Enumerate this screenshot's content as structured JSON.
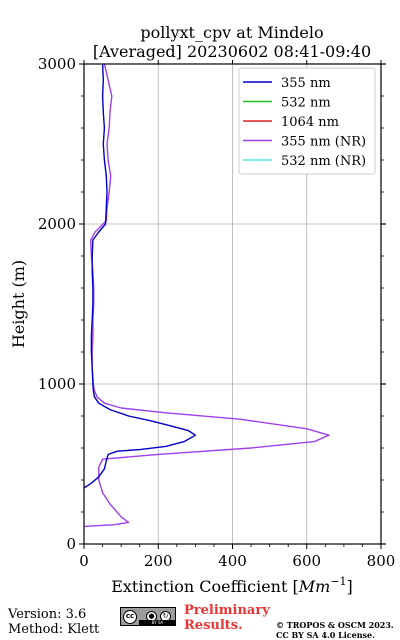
{
  "chart_data": {
    "type": "line",
    "title_line1": "pollyxt_cpv at Mindelo",
    "title_line2": "[Averaged] 20230602 08:41-09:40",
    "xlabel": "Extinction Coefficient [",
    "xlabel_unit": "Mm",
    "xlabel_exp": "−1",
    "xlabel_close": "]",
    "ylabel": "Height (m)",
    "xlim": [
      0,
      800
    ],
    "ylim": [
      0,
      3000
    ],
    "xticks": [
      0,
      200,
      400,
      600,
      800
    ],
    "yticks": [
      0,
      1000,
      2000,
      3000
    ],
    "grid": true,
    "legend_position": "top-right",
    "legend": [
      {
        "name": "355 nm",
        "color": "#0000cc"
      },
      {
        "name": "532 nm",
        "color": "#22bb22"
      },
      {
        "name": "1064 nm",
        "color": "#dd2222"
      },
      {
        "name": "355 nm (NR)",
        "color": "#a040ee"
      },
      {
        "name": "532 nm (NR)",
        "color": "#55e8d8"
      }
    ],
    "series": [
      {
        "name": "355 nm",
        "color": "#0000cc",
        "points": [
          [
            0,
            350
          ],
          [
            20,
            380
          ],
          [
            40,
            420
          ],
          [
            55,
            470
          ],
          [
            60,
            520
          ],
          [
            65,
            560
          ],
          [
            90,
            580
          ],
          [
            150,
            590
          ],
          [
            220,
            610
          ],
          [
            270,
            640
          ],
          [
            300,
            680
          ],
          [
            280,
            710
          ],
          [
            230,
            740
          ],
          [
            180,
            770
          ],
          [
            120,
            800
          ],
          [
            70,
            840
          ],
          [
            40,
            880
          ],
          [
            28,
            920
          ],
          [
            25,
            960
          ],
          [
            24,
            1000
          ],
          [
            22,
            1100
          ],
          [
            20,
            1200
          ],
          [
            20,
            1300
          ],
          [
            22,
            1400
          ],
          [
            24,
            1500
          ],
          [
            24,
            1600
          ],
          [
            22,
            1700
          ],
          [
            22,
            1800
          ],
          [
            24,
            1900
          ],
          [
            40,
            1950
          ],
          [
            58,
            2000
          ],
          [
            60,
            2100
          ],
          [
            62,
            2200
          ],
          [
            60,
            2300
          ],
          [
            55,
            2400
          ],
          [
            52,
            2500
          ],
          [
            55,
            2600
          ],
          [
            52,
            2700
          ],
          [
            50,
            2800
          ],
          [
            52,
            2900
          ],
          [
            50,
            3000
          ]
        ]
      },
      {
        "name": "355 nm (NR)",
        "color": "#a040ee",
        "points": [
          [
            0,
            110
          ],
          [
            40,
            115
          ],
          [
            80,
            120
          ],
          [
            120,
            135
          ],
          [
            100,
            170
          ],
          [
            70,
            250
          ],
          [
            50,
            320
          ],
          [
            40,
            400
          ],
          [
            40,
            480
          ],
          [
            50,
            530
          ],
          [
            200,
            560
          ],
          [
            450,
            600
          ],
          [
            620,
            640
          ],
          [
            660,
            680
          ],
          [
            600,
            720
          ],
          [
            420,
            780
          ],
          [
            220,
            820
          ],
          [
            100,
            850
          ],
          [
            55,
            880
          ],
          [
            35,
            920
          ],
          [
            28,
            960
          ],
          [
            25,
            1000
          ],
          [
            22,
            1100
          ],
          [
            22,
            1200
          ],
          [
            24,
            1300
          ],
          [
            24,
            1400
          ],
          [
            26,
            1500
          ],
          [
            26,
            1600
          ],
          [
            24,
            1700
          ],
          [
            20,
            1800
          ],
          [
            18,
            1900
          ],
          [
            30,
            1950
          ],
          [
            60,
            2020
          ],
          [
            62,
            2100
          ],
          [
            68,
            2200
          ],
          [
            72,
            2300
          ],
          [
            65,
            2400
          ],
          [
            62,
            2500
          ],
          [
            68,
            2600
          ],
          [
            70,
            2700
          ],
          [
            75,
            2800
          ],
          [
            65,
            2900
          ],
          [
            60,
            2950
          ],
          [
            55,
            3000
          ]
        ]
      }
    ]
  },
  "footer": {
    "version": "Version: 3.6",
    "method": "Method: Klett",
    "preliminary_line1": "Preliminary",
    "preliminary_line2": "Results.",
    "preliminary_color": "#ee3333",
    "copyright_line1": "© TROPOS & OSCM 2023.",
    "copyright_line2": "CC BY SA 4.0 License.",
    "cc_icon": "cc-icon",
    "by_icon": "by-icon",
    "sa_icon": "sa-icon",
    "cc_strip": "BY SA"
  }
}
